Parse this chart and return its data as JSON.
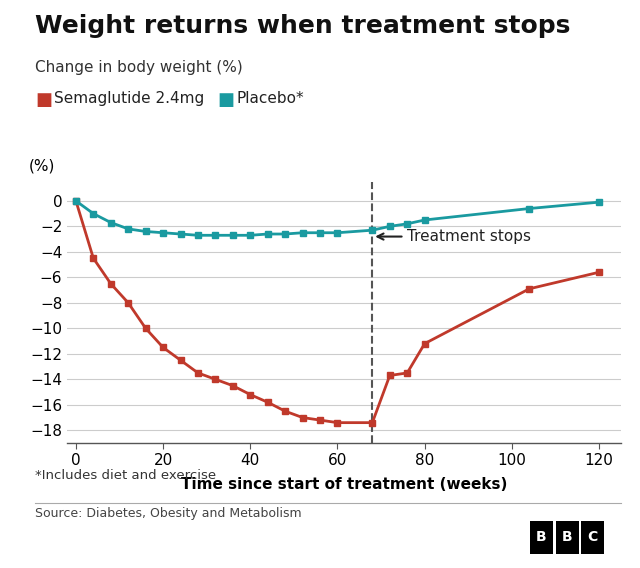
{
  "title": "Weight returns when treatment stops",
  "subtitle": "Change in body weight (%)",
  "ylabel": "(%)",
  "xlabel": "Time since start of treatment (weeks)",
  "footnote": "*Includes diet and exercise",
  "source": "Source: Diabetes, Obesity and Metabolism",
  "treatment_stop_x": 68,
  "annotation_text": "Treatment stops",
  "sema_x": [
    0,
    4,
    8,
    12,
    16,
    20,
    24,
    28,
    32,
    36,
    40,
    44,
    48,
    52,
    56,
    60,
    68,
    72,
    76,
    80,
    104,
    120
  ],
  "sema_y": [
    0,
    -4.5,
    -6.5,
    -8.0,
    -10.0,
    -11.5,
    -12.5,
    -13.5,
    -14.0,
    -14.5,
    -15.2,
    -15.8,
    -16.5,
    -17.0,
    -17.2,
    -17.4,
    -17.4,
    -13.7,
    -13.5,
    -11.2,
    -6.9,
    -5.6
  ],
  "placebo_x": [
    0,
    4,
    8,
    12,
    16,
    20,
    24,
    28,
    32,
    36,
    40,
    44,
    48,
    52,
    56,
    60,
    68,
    72,
    76,
    80,
    104,
    120
  ],
  "placebo_y": [
    0,
    -1.0,
    -1.7,
    -2.2,
    -2.4,
    -2.5,
    -2.6,
    -2.7,
    -2.7,
    -2.7,
    -2.7,
    -2.6,
    -2.6,
    -2.5,
    -2.5,
    -2.5,
    -2.3,
    -2.0,
    -1.8,
    -1.5,
    -0.6,
    -0.1
  ],
  "sema_color": "#c0392b",
  "placebo_color": "#1a9aa0",
  "ylim": [
    -19,
    1.5
  ],
  "xlim": [
    -2,
    125
  ],
  "yticks": [
    0,
    -2,
    -4,
    -6,
    -8,
    -10,
    -12,
    -14,
    -16,
    -18
  ],
  "xticks": [
    0,
    20,
    40,
    60,
    80,
    100,
    120
  ],
  "background_color": "#ffffff",
  "grid_color": "#cccccc",
  "title_fontsize": 18,
  "subtitle_fontsize": 11,
  "label_fontsize": 11,
  "tick_fontsize": 11,
  "legend_label_sema": "Semaglutide 2.4mg",
  "legend_label_placebo": "Placebo*"
}
